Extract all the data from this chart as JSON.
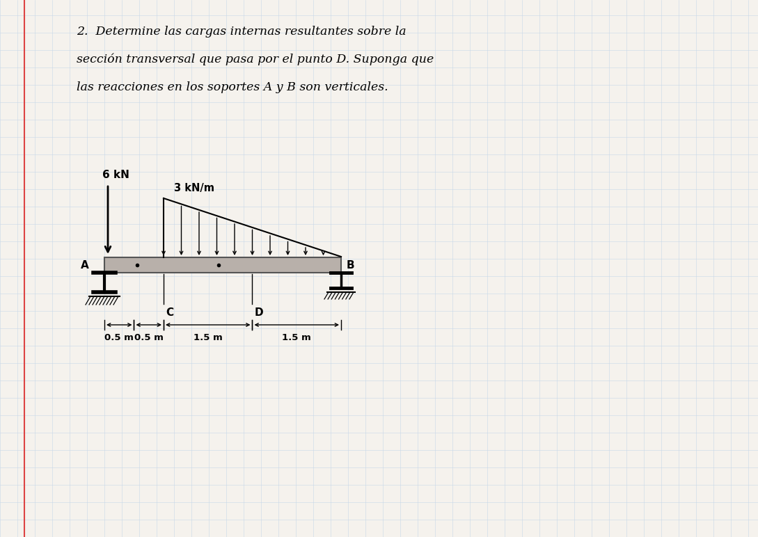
{
  "title_line1": "2.  Determine las cargas internas resultantes sobre la",
  "title_line2": "sección transversal que pasa por el punto D. Suponga que",
  "title_line3": "las reacciones en los soportes A y B son verticales.",
  "bg_color": "#f5f2ed",
  "grid_color": "#c8d8e8",
  "beam_color": "#b8b0aa",
  "beam_edge_color": "#555555",
  "label_6kN": "6 kN",
  "label_3kNm": "3 kN/m",
  "label_A": "A",
  "label_B": "B",
  "label_C": "C",
  "label_D": "D",
  "dim_labels": [
    "0.5 m",
    "0.5 m",
    "1.5 m",
    "1.5 m"
  ]
}
